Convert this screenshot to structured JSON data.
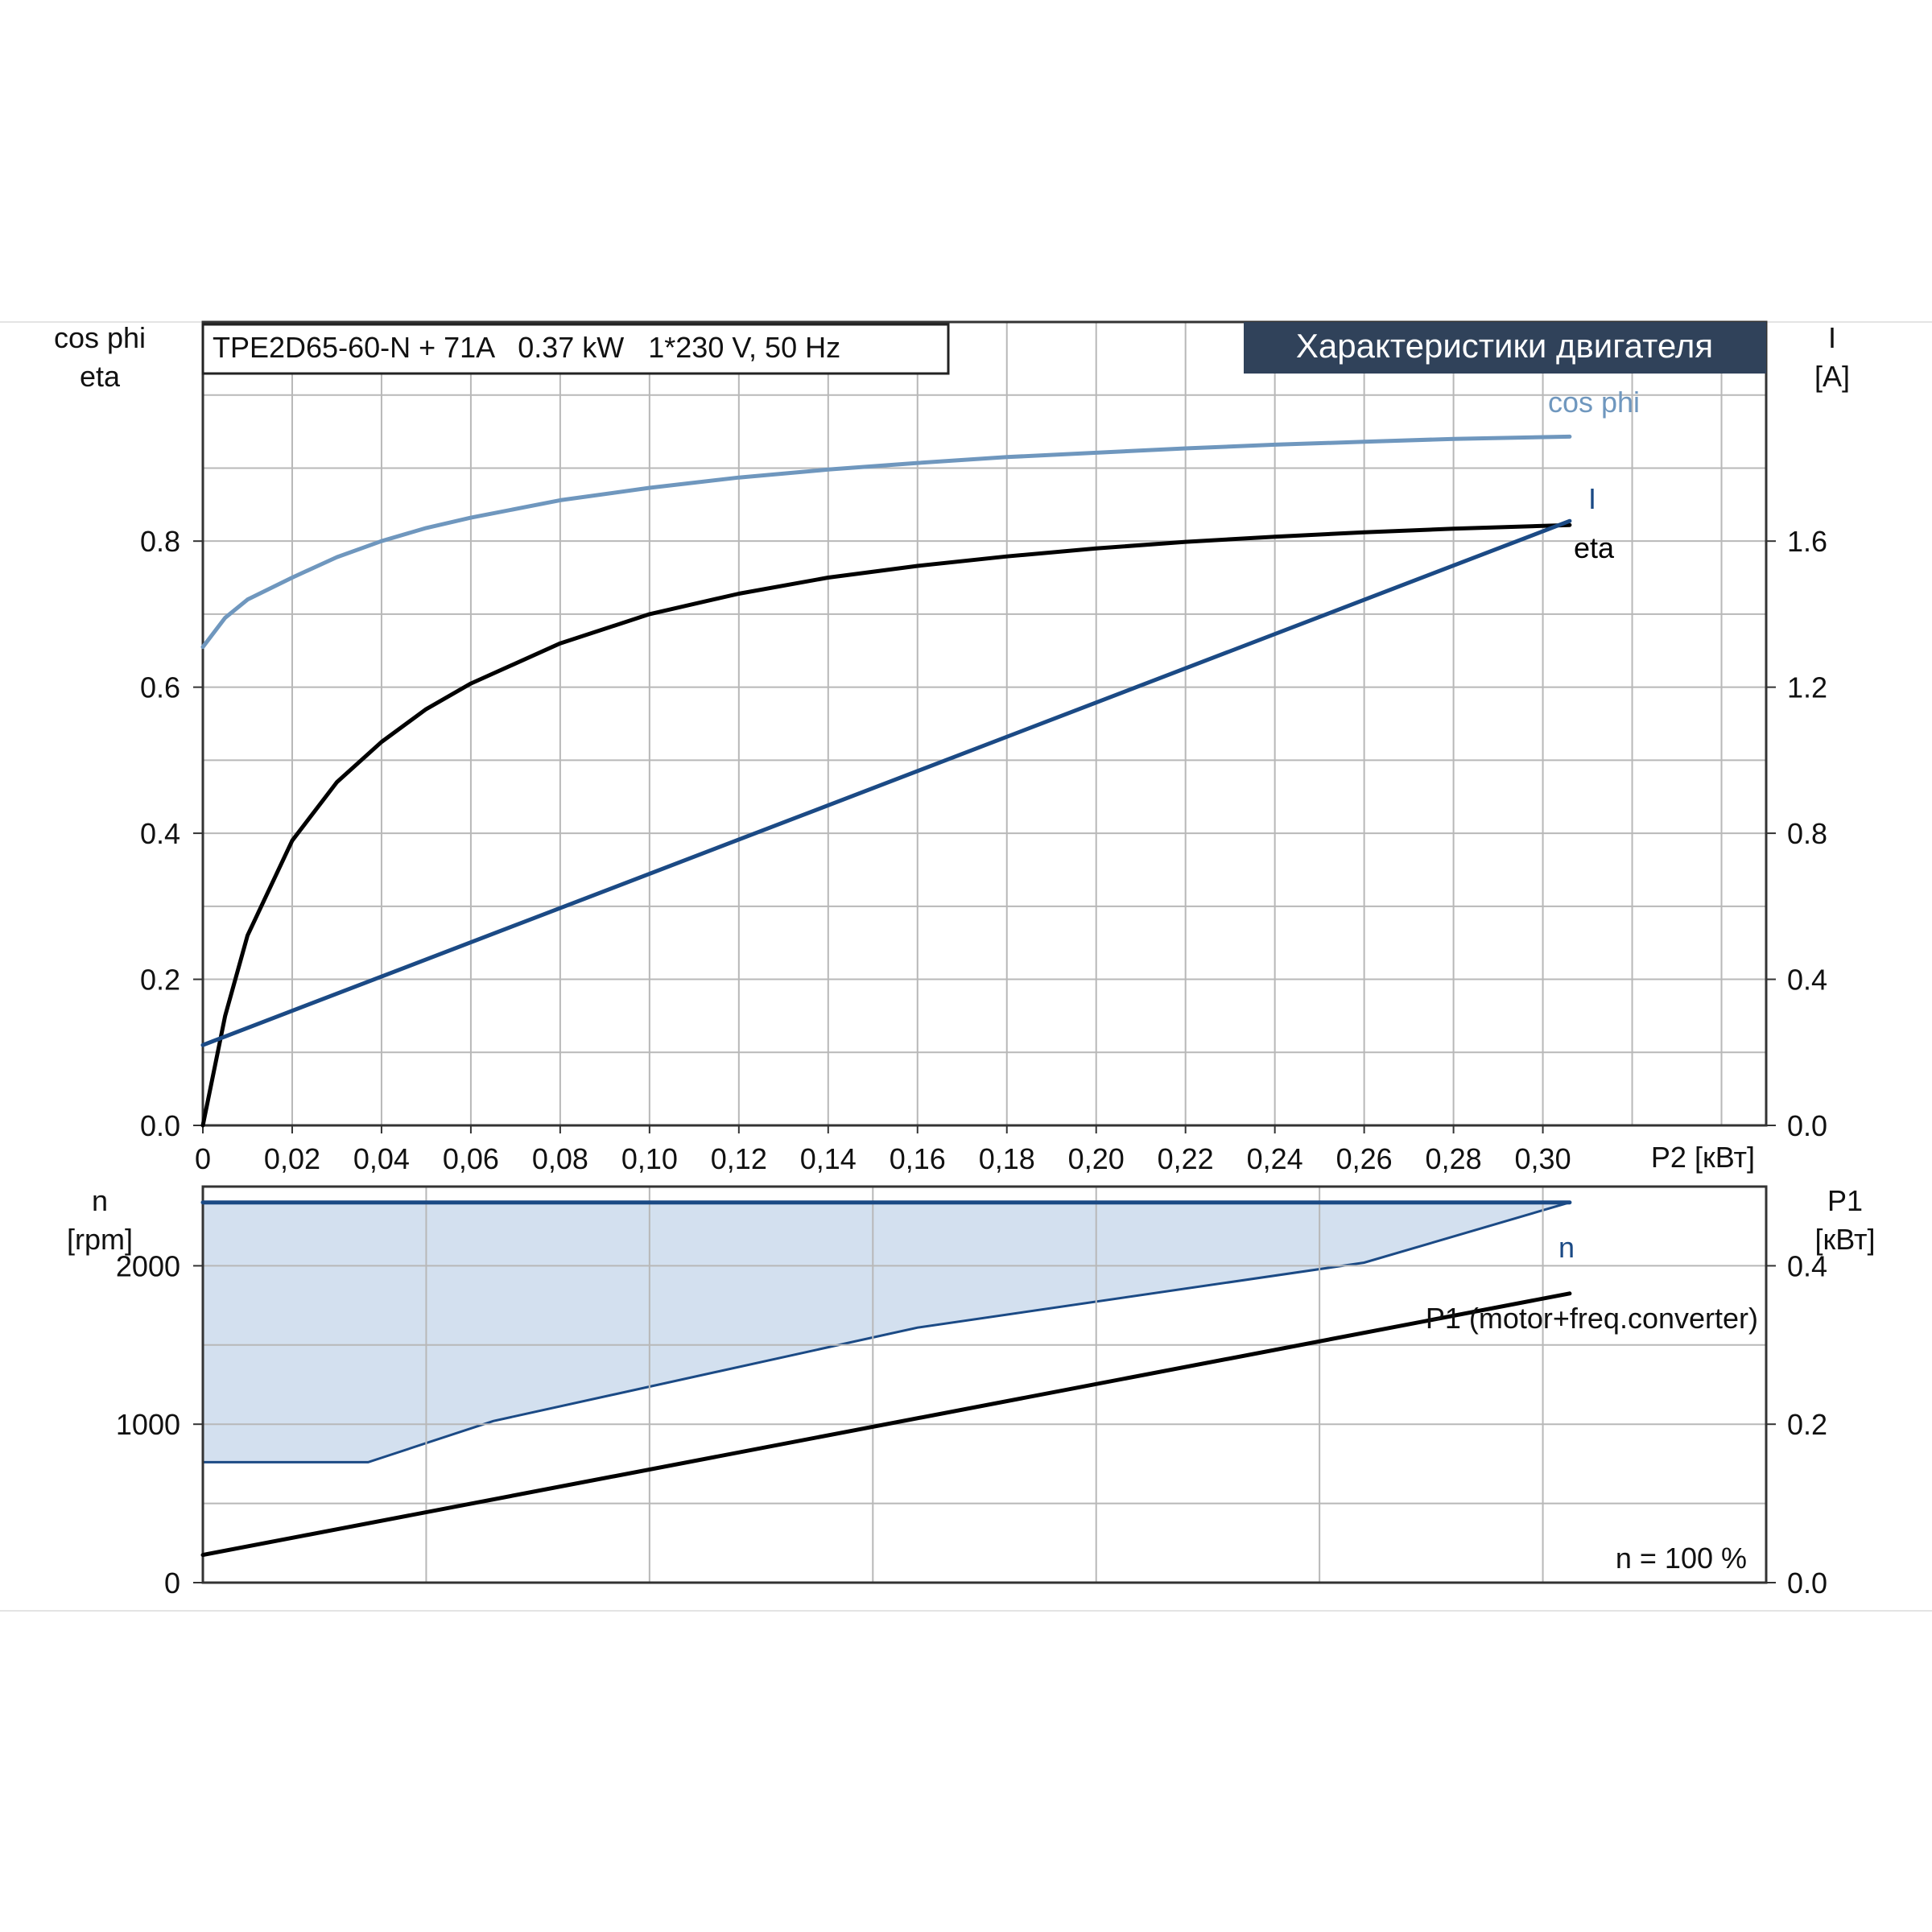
{
  "chart_data": [
    {
      "type": "line",
      "title": "TPE2D65-60-N + 71A   0.37 kW   1*230 V, 50 Hz",
      "banner": "Характеристики двигателя",
      "xlabel": "P2 [кВт]",
      "ylabel_left": [
        "cos phi",
        "eta"
      ],
      "ylabel_right": [
        "I",
        "[A]"
      ],
      "xlim": [
        0,
        0.35
      ],
      "ylim_left": [
        0,
        1.1
      ],
      "ylim_right": [
        0,
        2.2
      ],
      "x_ticks": [
        "0",
        "0,02",
        "0,04",
        "0,06",
        "0,08",
        "0,10",
        "0,12",
        "0,14",
        "0,16",
        "0,18",
        "0,20",
        "0,22",
        "0,24",
        "0,26",
        "0,28",
        "0,30"
      ],
      "x_tick_values": [
        0,
        0.02,
        0.04,
        0.06,
        0.08,
        0.1,
        0.12,
        0.14,
        0.16,
        0.18,
        0.2,
        0.22,
        0.24,
        0.26,
        0.28,
        0.3
      ],
      "y_ticks_left": [
        "0.0",
        "0.2",
        "0.4",
        "0.6",
        "0.8"
      ],
      "y_tick_values_left": [
        0,
        0.2,
        0.4,
        0.6,
        0.8
      ],
      "y_ticks_right": [
        "0.0",
        "0.4",
        "0.8",
        "1.2",
        "1.6"
      ],
      "y_tick_values_right": [
        0,
        0.4,
        0.8,
        1.2,
        1.6
      ],
      "grid": true,
      "series": [
        {
          "name": "cos phi",
          "axis": "left",
          "color": "#6f97be",
          "x": [
            0,
            0.005,
            0.01,
            0.02,
            0.03,
            0.04,
            0.05,
            0.06,
            0.08,
            0.1,
            0.12,
            0.14,
            0.16,
            0.18,
            0.2,
            0.22,
            0.24,
            0.26,
            0.28,
            0.306
          ],
          "y": [
            0.655,
            0.695,
            0.72,
            0.75,
            0.778,
            0.8,
            0.818,
            0.832,
            0.856,
            0.873,
            0.887,
            0.898,
            0.907,
            0.915,
            0.921,
            0.927,
            0.932,
            0.936,
            0.94,
            0.943
          ]
        },
        {
          "name": "eta",
          "axis": "left",
          "color": "#000000",
          "x": [
            0,
            0.005,
            0.01,
            0.02,
            0.03,
            0.04,
            0.05,
            0.06,
            0.08,
            0.1,
            0.12,
            0.14,
            0.16,
            0.18,
            0.2,
            0.22,
            0.24,
            0.26,
            0.28,
            0.306
          ],
          "y": [
            0.0,
            0.15,
            0.26,
            0.39,
            0.47,
            0.525,
            0.57,
            0.605,
            0.66,
            0.7,
            0.728,
            0.75,
            0.766,
            0.779,
            0.79,
            0.799,
            0.806,
            0.812,
            0.817,
            0.822
          ]
        },
        {
          "name": "I",
          "axis": "right",
          "color": "#1b4a85",
          "x": [
            0,
            0.306
          ],
          "y": [
            0.22,
            1.655
          ]
        }
      ]
    },
    {
      "type": "line",
      "ylabel_left": [
        "n",
        "[rpm]"
      ],
      "ylabel_right": [
        "P1",
        "[кВт]"
      ],
      "xlim": [
        0,
        0.35
      ],
      "ylim_left": [
        0,
        2500
      ],
      "ylim_right": [
        0,
        0.5
      ],
      "y_ticks_left": [
        "0",
        "1000",
        "2000"
      ],
      "y_tick_values_left": [
        0,
        1000,
        2000
      ],
      "y_ticks_right": [
        "0.0",
        "0.2",
        "0.4"
      ],
      "y_tick_values_right": [
        0,
        0.2,
        0.4
      ],
      "grid": true,
      "annotation": "n = 100 %",
      "range_band": {
        "color": "#d3e0ef",
        "upper": {
          "x": [
            0,
            0.306
          ],
          "y": [
            2400,
            2400
          ]
        },
        "lower": {
          "x": [
            0,
            0.037,
            0.065,
            0.16,
            0.26,
            0.306
          ],
          "y": [
            760,
            760,
            1020,
            1610,
            2020,
            2400
          ]
        }
      },
      "series": [
        {
          "name": "n",
          "axis": "left",
          "color": "#1b4a85",
          "x": [
            0,
            0.306
          ],
          "y": [
            2400,
            2400
          ]
        },
        {
          "name": "P1 (motor+freq.converter)",
          "axis": "right",
          "color": "#000000",
          "x": [
            0,
            0.306
          ],
          "y": [
            0.035,
            0.365
          ]
        }
      ]
    }
  ]
}
